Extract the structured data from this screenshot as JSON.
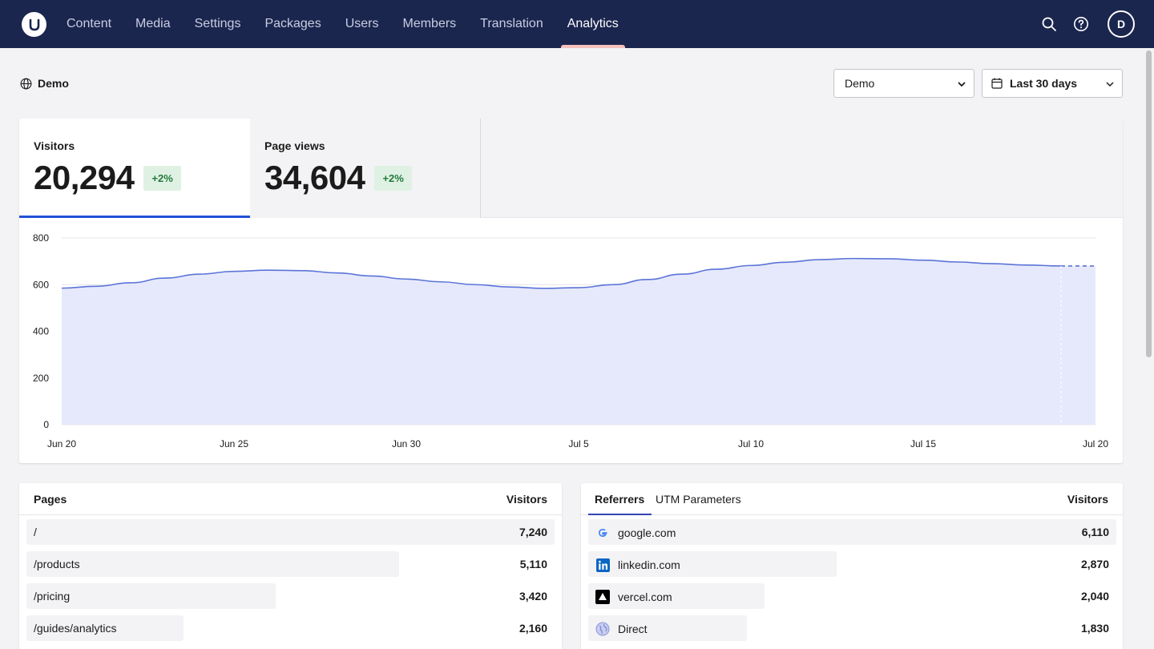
{
  "nav": {
    "items": [
      "Content",
      "Media",
      "Settings",
      "Packages",
      "Users",
      "Members",
      "Translation",
      "Analytics"
    ],
    "active": "Analytics",
    "avatar_initial": "D"
  },
  "header": {
    "site_name": "Demo",
    "site_select_value": "Demo",
    "range_select_value": "Last 30 days"
  },
  "kpis": {
    "visitors": {
      "label": "Visitors",
      "value": "20,294",
      "change": "+2%"
    },
    "pageviews": {
      "label": "Page views",
      "value": "34,604",
      "change": "+2%"
    }
  },
  "colors": {
    "nav_bg": "#1b264f",
    "accent": "#2152d8",
    "line": "#5b74d8",
    "area": "#e6e9fb",
    "positive": "#237a3d"
  },
  "chart_data": {
    "type": "area",
    "x": [
      "Jun 20",
      "Jun 21",
      "Jun 22",
      "Jun 23",
      "Jun 24",
      "Jun 25",
      "Jun 26",
      "Jun 27",
      "Jun 28",
      "Jun 29",
      "Jun 30",
      "Jul 1",
      "Jul 2",
      "Jul 3",
      "Jul 4",
      "Jul 5",
      "Jul 6",
      "Jul 7",
      "Jul 8",
      "Jul 9",
      "Jul 10",
      "Jul 11",
      "Jul 12",
      "Jul 13",
      "Jul 14",
      "Jul 15",
      "Jul 16",
      "Jul 17",
      "Jul 18",
      "Jul 19",
      "Jul 20"
    ],
    "x_ticks": [
      "Jun 20",
      "Jun 25",
      "Jun 30",
      "Jul 5",
      "Jul 10",
      "Jul 15",
      "Jul 20"
    ],
    "series": [
      {
        "values": [
          585,
          593,
          608,
          628,
          645,
          657,
          662,
          660,
          650,
          637,
          624,
          612,
          600,
          590,
          584,
          587,
          600,
          622,
          645,
          666,
          682,
          696,
          707,
          712,
          711,
          705,
          697,
          690,
          684,
          680,
          680
        ]
      }
    ],
    "y_ticks": [
      0,
      200,
      400,
      600,
      800
    ],
    "ylim": [
      0,
      800
    ],
    "dashed_last_segment": true,
    "grid": true
  },
  "pages": {
    "header_label": "Pages",
    "header_value": "Visitors",
    "rows": [
      {
        "label": "/",
        "value": "7,240",
        "share": 1.0
      },
      {
        "label": "/products",
        "value": "5,110",
        "share": 0.706
      },
      {
        "label": "/pricing",
        "value": "3,420",
        "share": 0.472
      },
      {
        "label": "/guides/analytics",
        "value": "2,160",
        "share": 0.298
      }
    ]
  },
  "referrers": {
    "tabs": [
      "Referrers",
      "UTM Parameters"
    ],
    "active_tab": "Referrers",
    "header_value": "Visitors",
    "rows": [
      {
        "label": "google.com",
        "value": "6,110",
        "share": 1.0,
        "icon": "google-icon"
      },
      {
        "label": "linkedin.com",
        "value": "2,870",
        "share": 0.47,
        "icon": "linkedin-icon"
      },
      {
        "label": "vercel.com",
        "value": "2,040",
        "share": 0.334,
        "icon": "vercel-icon"
      },
      {
        "label": "Direct",
        "value": "1,830",
        "share": 0.3,
        "icon": "globe-icon"
      }
    ]
  }
}
